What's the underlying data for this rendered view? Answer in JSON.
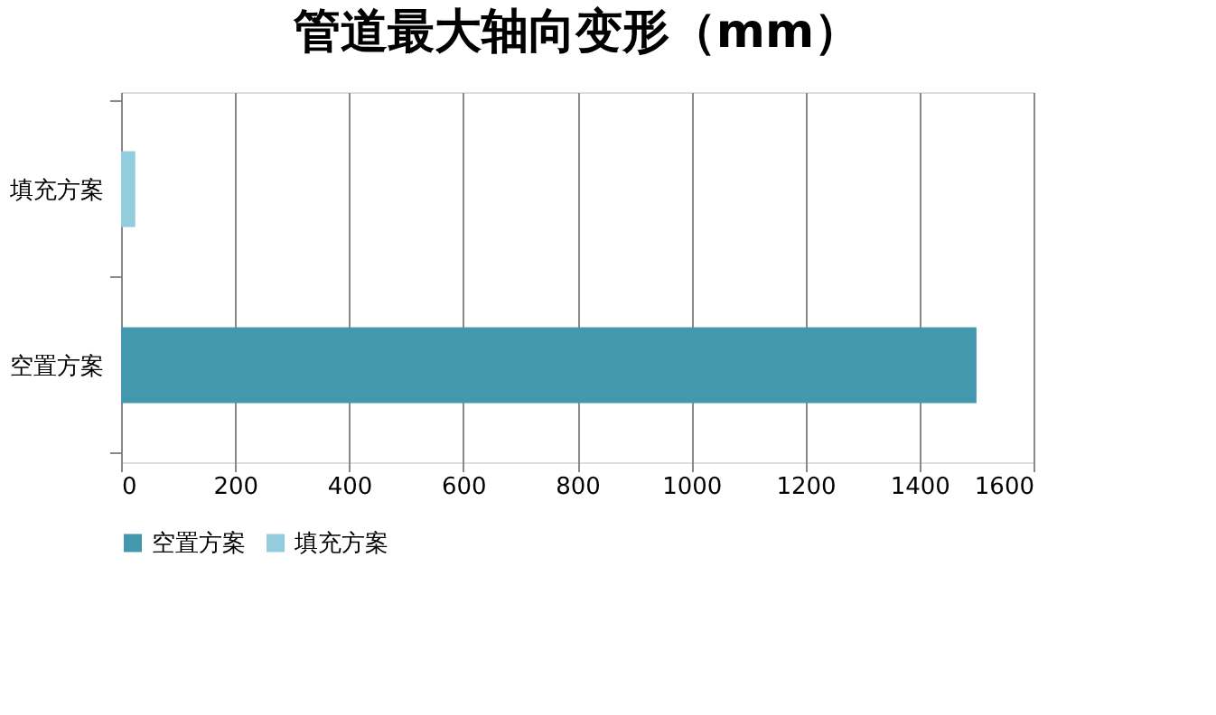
{
  "chart_data": {
    "type": "bar",
    "orientation": "horizontal",
    "title": "管道最大轴向变形（mm）",
    "categories": [
      "填充方案",
      "空置方案"
    ],
    "series": [
      {
        "name": "空置方案",
        "color": "#4398ae",
        "values": [
          null,
          1500
        ]
      },
      {
        "name": "填充方案",
        "color": "#93cddd",
        "values": [
          25,
          null
        ]
      }
    ],
    "xlim": [
      0,
      1600
    ],
    "xticks": [
      0,
      200,
      400,
      600,
      800,
      1000,
      1200,
      1400,
      1600
    ],
    "grid": "x",
    "legend": "bottom"
  }
}
